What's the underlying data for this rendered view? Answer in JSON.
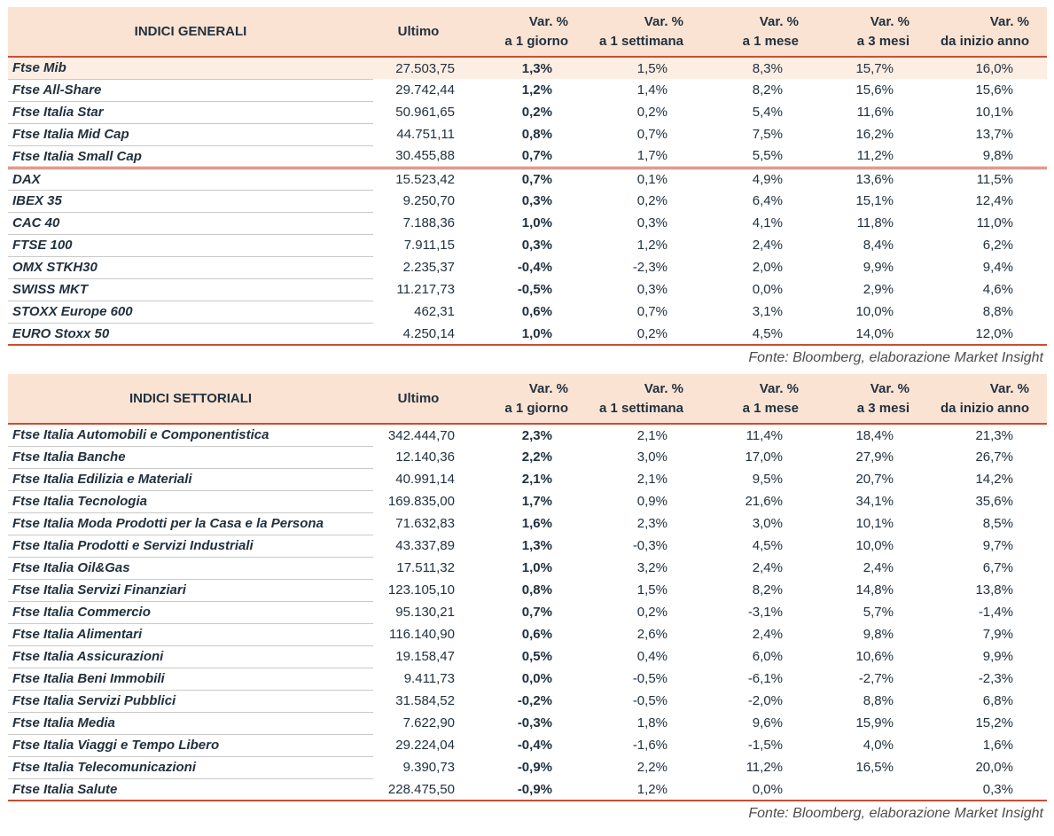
{
  "colors": {
    "accent": "#c94f32",
    "header_bg": "#fbe3d3",
    "highlight_bg": "#fdeee3",
    "text": "#22313f",
    "row_line": "#c9c9c9",
    "source_text": "#4d4d4d"
  },
  "tables": [
    {
      "title": "INDICI GENERALI",
      "columns": [
        {
          "key": "ultimo",
          "line1": "Ultimo"
        },
        {
          "key": "var-1-giorno",
          "line1": "Var. %",
          "line2": "a 1 giorno"
        },
        {
          "key": "var-1-settimana",
          "line1": "Var. %",
          "line2": "a 1 settimana"
        },
        {
          "key": "var-1-mese",
          "line1": "Var. %",
          "line2": "a 1 mese"
        },
        {
          "key": "var-3-mesi",
          "line1": "Var. %",
          "line2": "a 3 mesi"
        },
        {
          "key": "var-inizio-anno",
          "line1": "Var. %",
          "line2": "da inizio anno"
        }
      ],
      "rows": [
        {
          "name": "Ftse Mib",
          "values": [
            "27.503,75",
            "1,3%",
            "1,5%",
            "8,3%",
            "15,7%",
            "16,0%"
          ],
          "highlight": true
        },
        {
          "name": "Ftse All-Share",
          "values": [
            "29.742,44",
            "1,2%",
            "1,4%",
            "8,2%",
            "15,6%",
            "15,6%"
          ]
        },
        {
          "name": "Ftse Italia Star",
          "values": [
            "50.961,65",
            "0,2%",
            "0,2%",
            "5,4%",
            "11,6%",
            "10,1%"
          ]
        },
        {
          "name": "Ftse Italia Mid Cap",
          "values": [
            "44.751,11",
            "0,8%",
            "0,7%",
            "7,5%",
            "16,2%",
            "13,7%"
          ]
        },
        {
          "name": "Ftse Italia Small Cap",
          "values": [
            "30.455,88",
            "0,7%",
            "1,7%",
            "5,5%",
            "11,2%",
            "9,8%"
          ],
          "section_end": true
        },
        {
          "name": "DAX",
          "values": [
            "15.523,42",
            "0,7%",
            "0,1%",
            "4,9%",
            "13,6%",
            "11,5%"
          ]
        },
        {
          "name": "IBEX 35",
          "values": [
            "9.250,70",
            "0,3%",
            "0,2%",
            "6,4%",
            "15,1%",
            "12,4%"
          ]
        },
        {
          "name": "CAC 40",
          "values": [
            "7.188,36",
            "1,0%",
            "0,3%",
            "4,1%",
            "11,8%",
            "11,0%"
          ]
        },
        {
          "name": "FTSE 100",
          "values": [
            "7.911,15",
            "0,3%",
            "1,2%",
            "2,4%",
            "8,4%",
            "6,2%"
          ]
        },
        {
          "name": "OMX STKH30",
          "values": [
            "2.235,37",
            "-0,4%",
            "-2,3%",
            "2,0%",
            "9,9%",
            "9,4%"
          ]
        },
        {
          "name": "SWISS MKT",
          "values": [
            "11.217,73",
            "-0,5%",
            "0,3%",
            "0,0%",
            "2,9%",
            "4,6%"
          ]
        },
        {
          "name": "STOXX Europe 600",
          "values": [
            "462,31",
            "0,6%",
            "0,7%",
            "3,1%",
            "10,0%",
            "8,8%"
          ]
        },
        {
          "name": "EURO Stoxx 50",
          "values": [
            "4.250,14",
            "1,0%",
            "0,2%",
            "4,5%",
            "14,0%",
            "12,0%"
          ]
        }
      ],
      "source": "Fonte: Bloomberg, elaborazione Market Insight"
    },
    {
      "title": "INDICI SETTORIALI",
      "columns": [
        {
          "key": "ultimo",
          "line1": "Ultimo"
        },
        {
          "key": "var-1-giorno",
          "line1": "Var. %",
          "line2": "a 1 giorno"
        },
        {
          "key": "var-1-settimana",
          "line1": "Var. %",
          "line2": "a 1 settimana"
        },
        {
          "key": "var-1-mese",
          "line1": "Var. %",
          "line2": "a 1 mese"
        },
        {
          "key": "var-3-mesi",
          "line1": "Var. %",
          "line2": "a 3 mesi"
        },
        {
          "key": "var-inizio-anno",
          "line1": "Var. %",
          "line2": "da inizio anno"
        }
      ],
      "rows": [
        {
          "name": "Ftse Italia Automobili e Componentistica",
          "values": [
            "342.444,70",
            "2,3%",
            "2,1%",
            "11,4%",
            "18,4%",
            "21,3%"
          ]
        },
        {
          "name": "Ftse Italia Banche",
          "values": [
            "12.140,36",
            "2,2%",
            "3,0%",
            "17,0%",
            "27,9%",
            "26,7%"
          ]
        },
        {
          "name": "Ftse Italia Edilizia e Materiali",
          "values": [
            "40.991,14",
            "2,1%",
            "2,1%",
            "9,5%",
            "20,7%",
            "14,2%"
          ]
        },
        {
          "name": "Ftse Italia Tecnologia",
          "values": [
            "169.835,00",
            "1,7%",
            "0,9%",
            "21,6%",
            "34,1%",
            "35,6%"
          ]
        },
        {
          "name": "Ftse Italia Moda Prodotti per la Casa e la Persona",
          "values": [
            "71.632,83",
            "1,6%",
            "2,3%",
            "3,0%",
            "10,1%",
            "8,5%"
          ]
        },
        {
          "name": "Ftse Italia Prodotti e Servizi Industriali",
          "values": [
            "43.337,89",
            "1,3%",
            "-0,3%",
            "4,5%",
            "10,0%",
            "9,7%"
          ]
        },
        {
          "name": "Ftse Italia Oil&Gas",
          "values": [
            "17.511,32",
            "1,0%",
            "3,2%",
            "2,4%",
            "2,4%",
            "6,7%"
          ]
        },
        {
          "name": "Ftse Italia Servizi Finanziari",
          "values": [
            "123.105,10",
            "0,8%",
            "1,5%",
            "8,2%",
            "14,8%",
            "13,8%"
          ]
        },
        {
          "name": "Ftse Italia Commercio",
          "values": [
            "95.130,21",
            "0,7%",
            "0,2%",
            "-3,1%",
            "5,7%",
            "-1,4%"
          ]
        },
        {
          "name": "Ftse Italia Alimentari",
          "values": [
            "116.140,90",
            "0,6%",
            "2,6%",
            "2,4%",
            "9,8%",
            "7,9%"
          ]
        },
        {
          "name": "Ftse Italia Assicurazioni",
          "values": [
            "19.158,47",
            "0,5%",
            "0,4%",
            "6,0%",
            "10,6%",
            "9,9%"
          ]
        },
        {
          "name": "Ftse Italia Beni Immobili",
          "values": [
            "9.411,73",
            "0,0%",
            "-0,5%",
            "-6,1%",
            "-2,7%",
            "-2,3%"
          ]
        },
        {
          "name": "Ftse Italia Servizi Pubblici",
          "values": [
            "31.584,52",
            "-0,2%",
            "-0,5%",
            "-2,0%",
            "8,8%",
            "6,8%"
          ]
        },
        {
          "name": "Ftse Italia Media",
          "values": [
            "7.622,90",
            "-0,3%",
            "1,8%",
            "9,6%",
            "15,9%",
            "15,2%"
          ]
        },
        {
          "name": "Ftse Italia Viaggi e Tempo Libero",
          "values": [
            "29.224,04",
            "-0,4%",
            "-1,6%",
            "-1,5%",
            "4,0%",
            "1,6%"
          ]
        },
        {
          "name": "Ftse Italia Telecomunicazioni",
          "values": [
            "9.390,73",
            "-0,9%",
            "2,2%",
            "11,2%",
            "16,5%",
            "20,0%"
          ]
        },
        {
          "name": "Ftse Italia Salute",
          "values": [
            "228.475,50",
            "-0,9%",
            "1,2%",
            "0,0%",
            "",
            "0,3%"
          ]
        }
      ],
      "source": "Fonte: Bloomberg, elaborazione Market Insight"
    }
  ]
}
